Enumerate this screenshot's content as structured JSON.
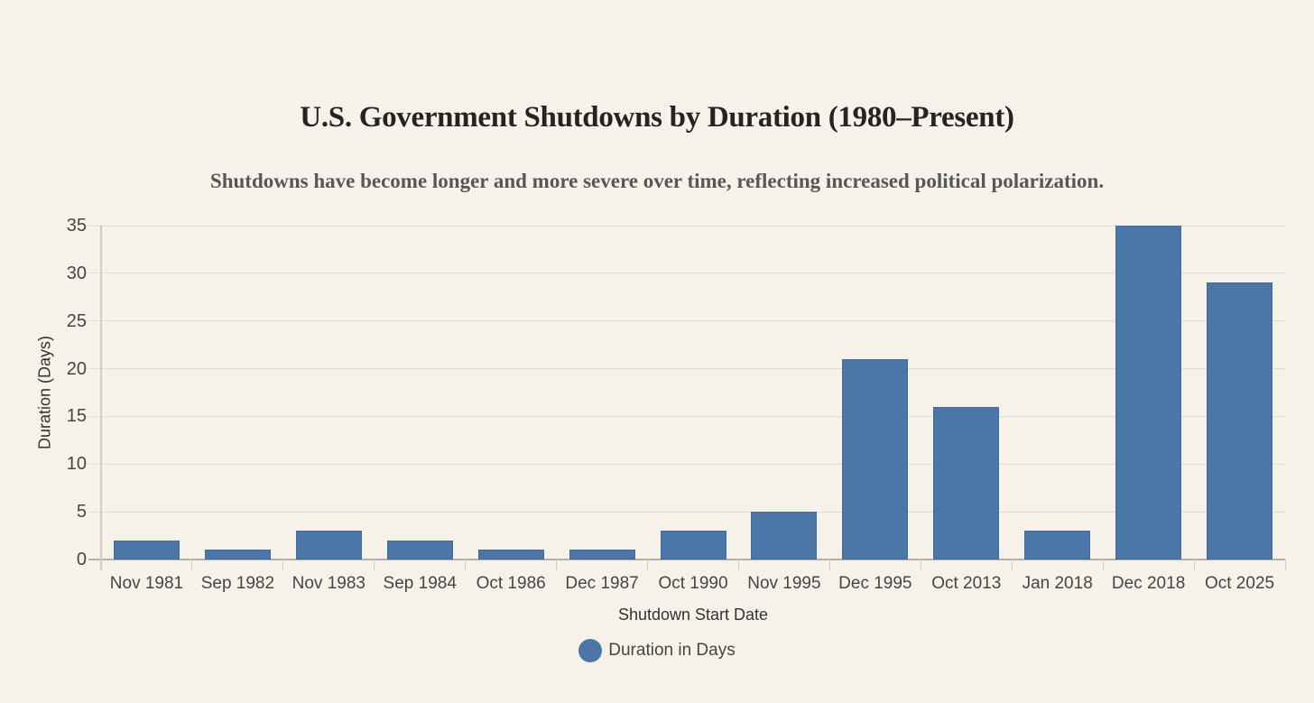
{
  "chart_data": {
    "type": "bar",
    "title": "U.S. Government Shutdowns by Duration (1980–Present)",
    "subtitle": "Shutdowns have become longer and more severe over time, reflecting increased political polarization.",
    "xlabel": "Shutdown Start Date",
    "ylabel": "Duration (Days)",
    "categories": [
      "Nov 1981",
      "Sep 1982",
      "Nov 1983",
      "Sep 1984",
      "Oct 1986",
      "Dec 1987",
      "Oct 1990",
      "Nov 1995",
      "Dec 1995",
      "Oct 2013",
      "Jan 2018",
      "Dec 2018",
      "Oct 2025"
    ],
    "series": [
      {
        "name": "Duration in Days",
        "values": [
          2,
          1,
          3,
          2,
          1,
          1,
          3,
          5,
          21,
          16,
          3,
          35,
          29
        ]
      }
    ],
    "ylim": [
      0,
      35
    ],
    "yticks": [
      0,
      5,
      10,
      15,
      20,
      25,
      30,
      35
    ],
    "grid": true,
    "legend_position": "bottom"
  },
  "colors": {
    "background": "#f7f2e9",
    "bar_fill": "#4b76a8",
    "bar_border": "#3f6b9e",
    "gridline": "#e3ded5",
    "axis_line": "#b3b0aa",
    "tick_line": "#cfccc5",
    "title_text": "#242424",
    "subtitle_text": "#575757",
    "label_text": "#454545",
    "axis_title_text": "#333333"
  }
}
